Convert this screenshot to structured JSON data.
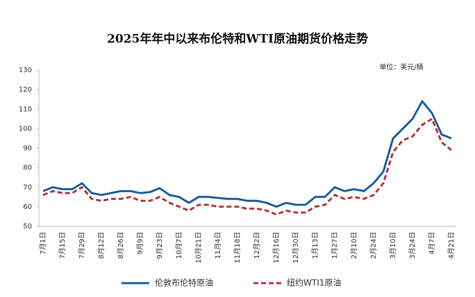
{
  "chart_data": {
    "type": "line",
    "title": "2025年年中以来布伦特和WTI原油期货价格走势",
    "unit_label": "单位：美元/桶",
    "categories": [
      "7月1日",
      null,
      "7月15日",
      null,
      "7月29日",
      null,
      "8月12日",
      null,
      "8月26日",
      null,
      "9月9日",
      null,
      "9月23日",
      null,
      "10月7日",
      null,
      "10月21日",
      null,
      "11月4日",
      null,
      "11月18日",
      null,
      "12月2日",
      null,
      "12月16日",
      null,
      "12月30日",
      null,
      "1月13日",
      null,
      "1月27日",
      null,
      "2月10日",
      null,
      "2月24日",
      null,
      "3月10日",
      null,
      "3月24日",
      null,
      "4月7日",
      null,
      "4月21日"
    ],
    "series": [
      {
        "name": "伦敦布伦特原油",
        "color": "#1f5f9e",
        "dashed": false,
        "values": [
          68,
          70,
          69,
          69,
          72,
          67,
          66,
          67,
          68,
          68,
          67,
          67.5,
          69.5,
          66,
          65,
          62,
          65,
          65,
          64.5,
          64,
          64,
          63,
          63,
          62,
          60,
          62,
          61,
          61,
          65,
          65,
          70,
          68,
          69,
          68,
          72,
          78,
          95,
          100,
          105,
          114,
          108,
          97,
          95
        ]
      },
      {
        "name": "纽约WTI1原油",
        "color": "#b03a3a",
        "dashed": true,
        "values": [
          66,
          68,
          67,
          67,
          70,
          64,
          63,
          64,
          64,
          65,
          63,
          63,
          65,
          62,
          60,
          58,
          61,
          61,
          60,
          60,
          60,
          59,
          59,
          58,
          56,
          58,
          57,
          57,
          60,
          61,
          66,
          64,
          65,
          64,
          66,
          72,
          88,
          94,
          96,
          102,
          105,
          93,
          89
        ]
      }
    ],
    "ylim": [
      50,
      130
    ],
    "yticks": [
      50,
      60,
      70,
      80,
      90,
      100,
      110,
      120,
      130
    ],
    "grid": false
  }
}
